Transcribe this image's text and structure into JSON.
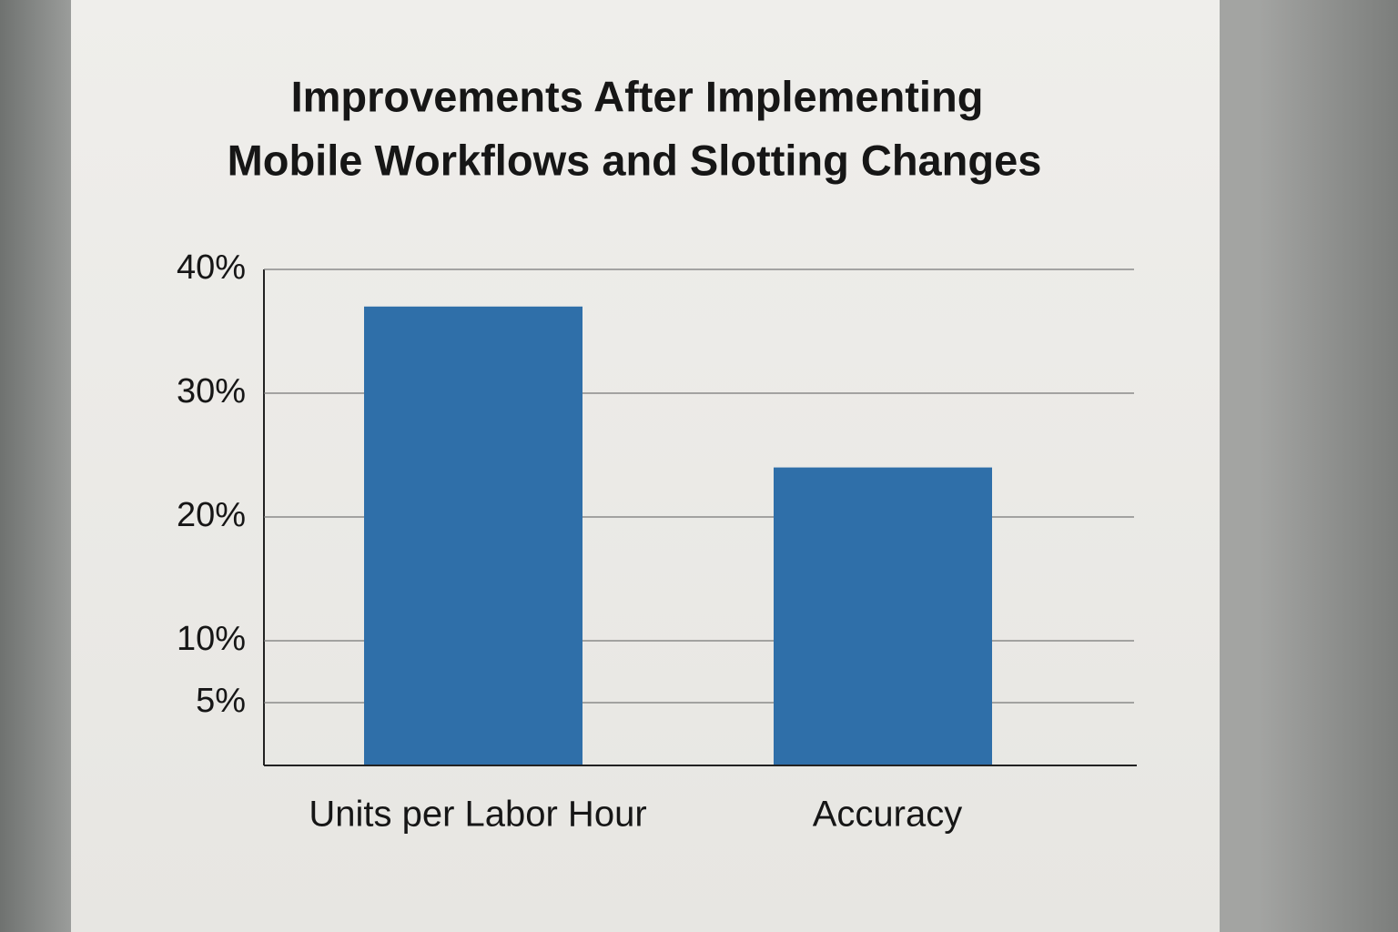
{
  "chart_data": {
    "type": "bar",
    "title": [
      "Improvements After Implementing",
      "Mobile Workflows and Slotting Changes"
    ],
    "categories": [
      "Units per Labor Hour",
      "Accuracy"
    ],
    "values": [
      37,
      24
    ],
    "color": "#2f6fa9",
    "ylim": [
      0,
      40
    ],
    "yticks": [
      {
        "value": 40,
        "label": "40%"
      },
      {
        "value": 30,
        "label": "30%"
      },
      {
        "value": 20,
        "label": "20%"
      },
      {
        "value": 10,
        "label": "10%"
      },
      {
        "value": 5,
        "label": "5%"
      }
    ],
    "grid": true
  }
}
